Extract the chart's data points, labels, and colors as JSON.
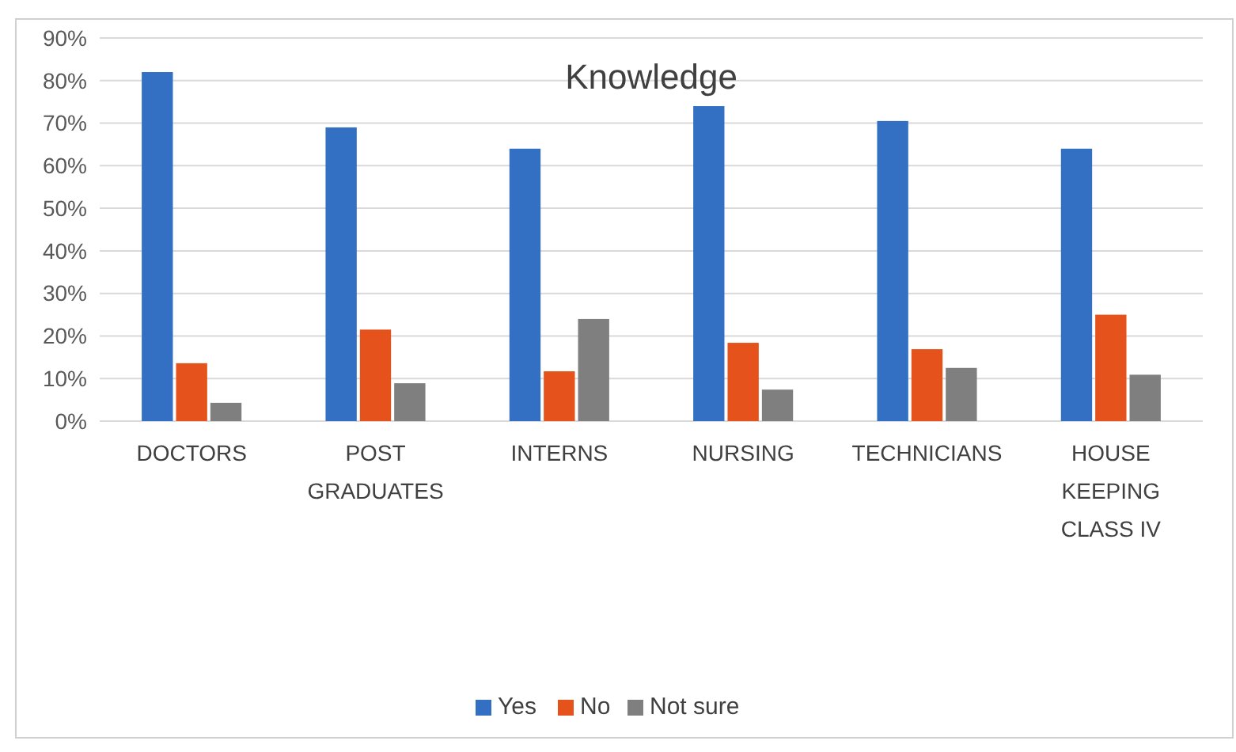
{
  "chart_data": {
    "type": "bar",
    "title": "Knowledge",
    "categories": [
      "DOCTORS",
      "POST GRADUATES",
      "INTERNS",
      "NURSING",
      "TECHNICIANS",
      "HOUSE KEEPING CLASS IV"
    ],
    "series": [
      {
        "name": "Yes",
        "color": "#3370c3",
        "values": [
          82,
          69,
          64,
          74,
          70.5,
          64
        ]
      },
      {
        "name": "No",
        "color": "#e5521c",
        "values": [
          13.6,
          21.5,
          11.7,
          18.4,
          16.9,
          25
        ]
      },
      {
        "name": "Not sure",
        "color": "#7f7f7f",
        "values": [
          4.3,
          8.9,
          24,
          7.4,
          12.5,
          10.9
        ]
      }
    ],
    "ylim": [
      0,
      90
    ],
    "yticks": [
      {
        "value": 0,
        "label": "0%"
      },
      {
        "value": 10,
        "label": "10%"
      },
      {
        "value": 20,
        "label": "20%"
      },
      {
        "value": 30,
        "label": "30%"
      },
      {
        "value": 40,
        "label": "40%"
      },
      {
        "value": 50,
        "label": "50%"
      },
      {
        "value": 60,
        "label": "60%"
      },
      {
        "value": 70,
        "label": "70%"
      },
      {
        "value": 80,
        "label": "80%"
      },
      {
        "value": 90,
        "label": "90%"
      }
    ],
    "grid": "y",
    "legend": "bottom"
  }
}
